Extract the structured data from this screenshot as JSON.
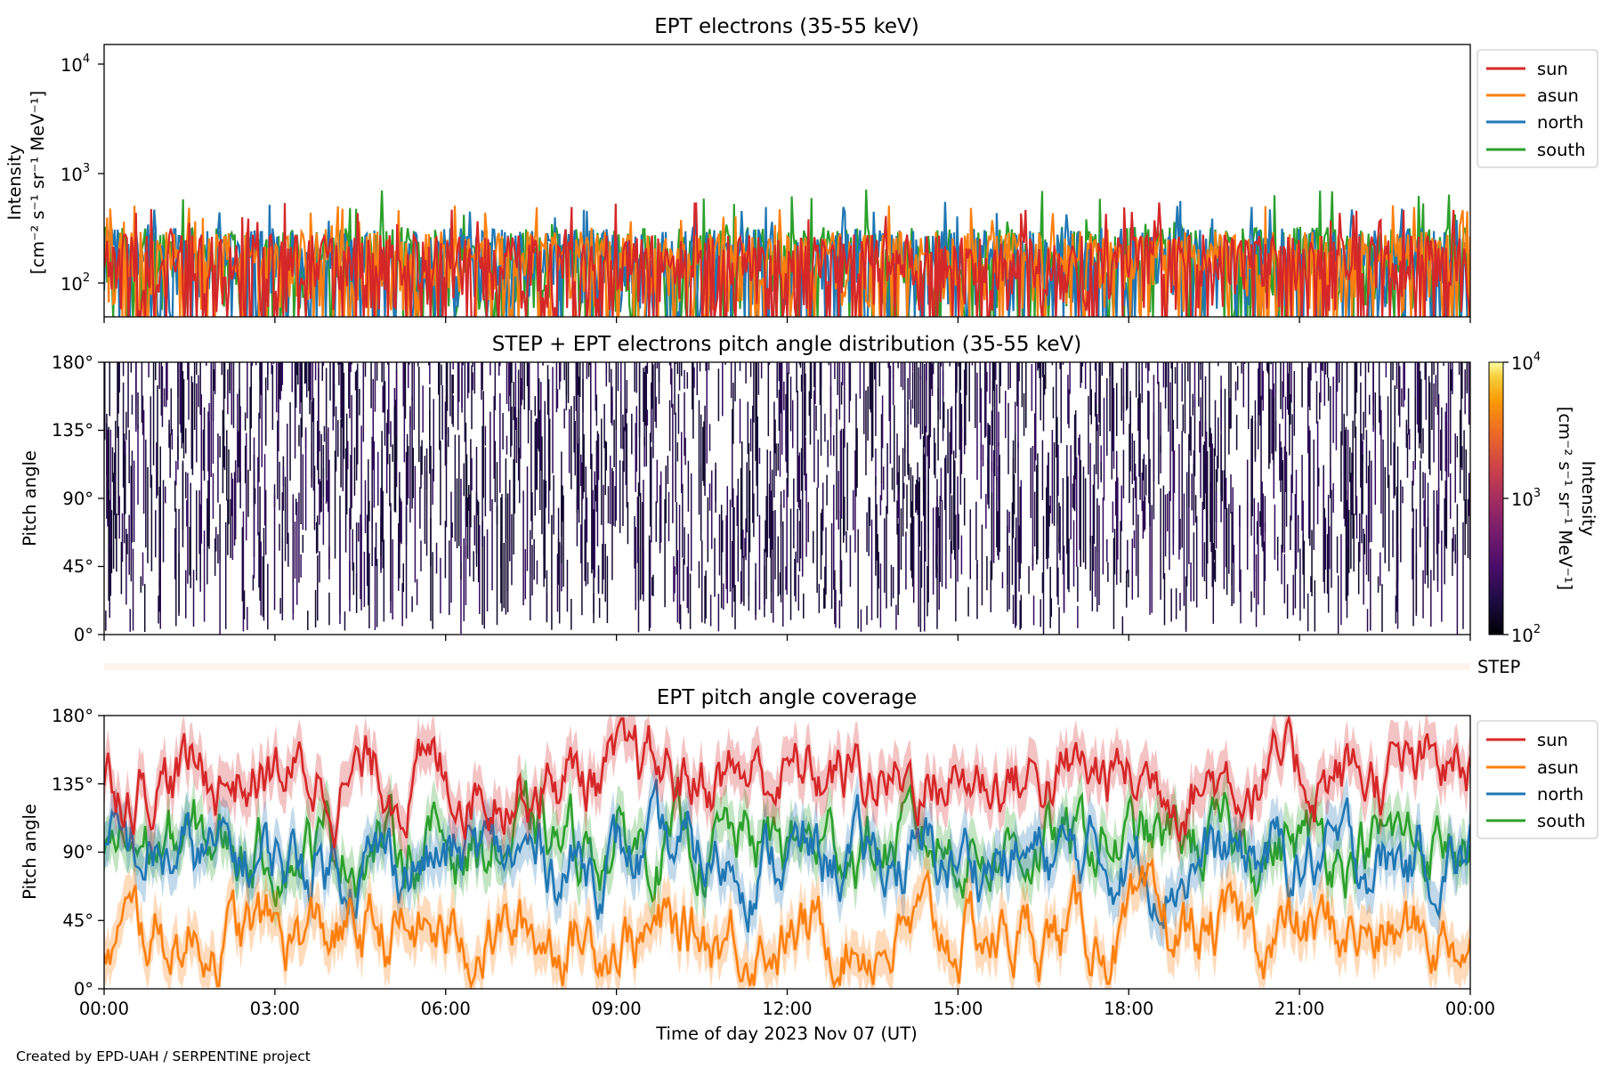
{
  "figure": {
    "credit": "Created by EPD-UAH / SERPENTINE project",
    "xlabel": "Time of day 2023 Nov 07 (UT)",
    "xticks": [
      "00:00",
      "03:00",
      "06:00",
      "09:00",
      "12:00",
      "15:00",
      "18:00",
      "21:00",
      "00:00"
    ]
  },
  "colors": {
    "sun": "#d62728",
    "asun": "#ff7f0e",
    "north": "#1f77b4",
    "south": "#2ca02c"
  },
  "chart_data": [
    {
      "type": "line",
      "title": "EPT electrons (35-55 keV)",
      "ylabel": "Intensity",
      "yunit": "[cm⁻² s⁻¹ sr⁻¹ MeV⁻¹]",
      "yscale": "log",
      "ylim": [
        50,
        15000
      ],
      "yticks": [
        "10",
        "10",
        "10"
      ],
      "ytick_exponents": [
        "4",
        "3",
        "2"
      ],
      "xlim_hours": [
        0,
        24
      ],
      "legend": [
        "sun",
        "asun",
        "north",
        "south"
      ],
      "legend_position": "outside-right-top",
      "series": [
        {
          "name": "south",
          "typical_range": [
            55,
            330
          ],
          "spikes_max": 750
        },
        {
          "name": "north",
          "typical_range": [
            55,
            320
          ],
          "spikes_max": 580
        },
        {
          "name": "asun",
          "typical_range": [
            55,
            300
          ],
          "spikes_max": 520
        },
        {
          "name": "sun",
          "typical_range": [
            55,
            280
          ],
          "spikes_max": 560
        }
      ]
    },
    {
      "type": "heatmap",
      "title": "STEP + EPT electrons pitch angle distribution (35-55 keV)",
      "ylabel": "Pitch angle",
      "yticks": [
        "180°",
        "135°",
        "90°",
        "45°",
        "0°"
      ],
      "ylim": [
        0,
        180
      ],
      "xlim_hours": [
        0,
        24
      ],
      "colorbar": {
        "label": "Intensity",
        "unit": "[cm⁻² s⁻¹ sr⁻¹ MeV⁻¹]",
        "scale": "log",
        "range": [
          100,
          10000
        ],
        "ticks": [
          "10",
          "10",
          "10"
        ],
        "tick_exponents": [
          "4",
          "3",
          "2"
        ]
      },
      "step_label": "STEP"
    },
    {
      "type": "line",
      "title": "EPT pitch angle coverage",
      "ylabel": "Pitch angle",
      "yticks": [
        "180°",
        "135°",
        "90°",
        "45°",
        "0°"
      ],
      "ylim": [
        0,
        180
      ],
      "xlim_hours": [
        0,
        24
      ],
      "legend": [
        "sun",
        "asun",
        "north",
        "south"
      ],
      "legend_position": "outside-right-top",
      "series": [
        {
          "name": "sun",
          "mean_deg": 140,
          "range_deg": [
            70,
            178
          ],
          "band_halfwidth_deg": 15
        },
        {
          "name": "asun",
          "mean_deg": 35,
          "range_deg": [
            2,
            110
          ],
          "band_halfwidth_deg": 15
        },
        {
          "name": "north",
          "mean_deg": 85,
          "range_deg": [
            5,
            175
          ],
          "band_halfwidth_deg": 15
        },
        {
          "name": "south",
          "mean_deg": 95,
          "range_deg": [
            5,
            178
          ],
          "band_halfwidth_deg": 15
        }
      ]
    }
  ]
}
